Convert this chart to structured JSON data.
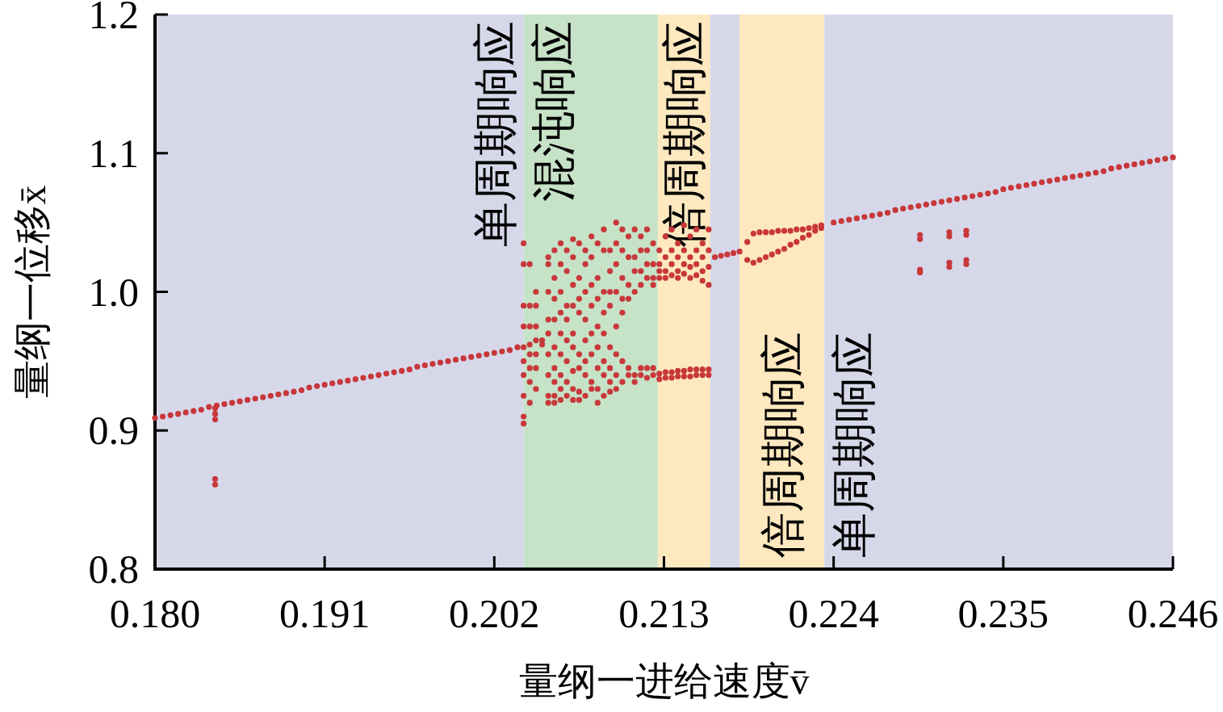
{
  "chart_data": {
    "type": "scatter",
    "xlabel": "量纲一进给速度v̄",
    "ylabel": "量纲一位移x̄",
    "xlim": [
      0.18,
      0.246
    ],
    "ylim": [
      0.8,
      1.2
    ],
    "xticks": [
      {
        "value": 0.18,
        "label": "0.180"
      },
      0.191,
      0.202,
      0.213,
      0.224,
      0.235,
      0.246
    ],
    "yticks": [
      0.8,
      0.9,
      {
        "value": 1.0,
        "label": "1.0"
      },
      1.1,
      1.2
    ],
    "grid": false,
    "marker": "circle",
    "bands": [
      {
        "axis": "x",
        "from": 0.18,
        "to": 0.2039,
        "label": "单周期响应",
        "color": "#d6d8ea"
      },
      {
        "axis": "x",
        "from": 0.2039,
        "to": 0.2126,
        "label": "混沌响应",
        "color": "#c6e2c7"
      },
      {
        "axis": "x",
        "from": 0.2126,
        "to": 0.216,
        "label": "倍周期响应",
        "color": "#fde8bf"
      },
      {
        "axis": "x",
        "from": 0.216,
        "to": 0.2179,
        "color": "#d6d8ea"
      },
      {
        "axis": "x",
        "from": 0.2179,
        "to": 0.2234,
        "label": "倍周期响应",
        "color": "#fde8bf"
      },
      {
        "axis": "x",
        "from": 0.2234,
        "to": 0.246,
        "label": "单周期响应",
        "color": "#d6d8ea"
      }
    ],
    "series": [
      {
        "color": "#c8373a",
        "x": [
          0.18,
          0.1805,
          0.181,
          0.1815,
          0.182,
          0.1825,
          0.183,
          0.1835,
          0.184,
          0.1845,
          0.185,
          0.1855,
          0.186,
          0.1865,
          0.187,
          0.1875,
          0.188,
          0.1885,
          0.189,
          0.1895,
          0.19,
          0.1905,
          0.191,
          0.1915,
          0.192,
          0.1925,
          0.193,
          0.1935,
          0.194,
          0.1945,
          0.195,
          0.1955,
          0.196,
          0.1965,
          0.197,
          0.1975,
          0.198,
          0.1985,
          0.199,
          0.1995,
          0.2,
          0.2005,
          0.201,
          0.2015,
          0.202,
          0.2025,
          0.203,
          0.2035
        ],
        "values": [
          0.909,
          0.91,
          0.911,
          0.912,
          0.913,
          0.914,
          0.915,
          0.917,
          0.918,
          0.919,
          0.92,
          0.921,
          0.922,
          0.923,
          0.924,
          0.925,
          0.926,
          0.927,
          0.928,
          0.929,
          0.931,
          0.932,
          0.933,
          0.934,
          0.935,
          0.936,
          0.937,
          0.938,
          0.939,
          0.94,
          0.941,
          0.942,
          0.943,
          0.944,
          0.946,
          0.947,
          0.948,
          0.949,
          0.95,
          0.951,
          0.952,
          0.953,
          0.954,
          0.955,
          0.956,
          0.957,
          0.958,
          0.96
        ]
      },
      {
        "color": "#c8373a",
        "x": [
          0.1839,
          0.1839,
          0.1839,
          0.1839,
          0.1839
        ],
        "values": [
          0.916,
          0.912,
          0.908,
          0.865,
          0.861
        ]
      },
      {
        "color": "#c8373a",
        "x": [
          0.2039,
          0.2039,
          0.2039,
          0.2039,
          0.2039,
          0.2039,
          0.2039,
          0.2039,
          0.2039,
          0.2039,
          0.2043,
          0.2043,
          0.2043,
          0.2043,
          0.2043,
          0.2043,
          0.2043,
          0.2043,
          0.2047,
          0.2047,
          0.2047,
          0.2047,
          0.2047,
          0.2047,
          0.2047,
          0.2051,
          0.2051
        ],
        "values": [
          1.035,
          1.02,
          0.99,
          0.975,
          0.96,
          0.95,
          0.94,
          0.925,
          0.91,
          0.905,
          1.02,
          0.99,
          0.975,
          0.962,
          0.955,
          0.945,
          0.935,
          0.92,
          1.0,
          0.99,
          0.975,
          0.965,
          0.955,
          0.945,
          0.93,
          0.965,
          0.962
        ]
      },
      {
        "color": "#c8373a",
        "x": [
          0.2055,
          0.2055,
          0.2055,
          0.2055,
          0.2055,
          0.2055,
          0.2055,
          0.2055,
          0.2055,
          0.2059,
          0.2059,
          0.2059,
          0.2059,
          0.2059,
          0.2059,
          0.2059,
          0.2059,
          0.2059,
          0.2063,
          0.2063,
          0.2063,
          0.2063,
          0.2063,
          0.2063,
          0.2063,
          0.2063,
          0.2063,
          0.2067,
          0.2067,
          0.2067,
          0.2067,
          0.2067,
          0.2067,
          0.2067,
          0.2067
        ],
        "values": [
          1.025,
          1.02,
          1.0,
          0.98,
          0.97,
          0.955,
          0.94,
          0.925,
          0.92,
          1.03,
          1.01,
          0.995,
          0.98,
          0.96,
          0.945,
          0.935,
          0.925,
          0.92,
          1.035,
          1.02,
          1.0,
          0.985,
          0.97,
          0.955,
          0.94,
          0.93,
          0.922,
          1.03,
          1.015,
          0.99,
          0.98,
          0.965,
          0.95,
          0.935,
          0.925
        ]
      },
      {
        "color": "#c8373a",
        "x": [
          0.2071,
          0.2071,
          0.2071,
          0.2071,
          0.2071,
          0.2071,
          0.2071,
          0.2071,
          0.2071,
          0.2075,
          0.2075,
          0.2075,
          0.2075,
          0.2075,
          0.2075,
          0.2075,
          0.2075,
          0.2079,
          0.2079,
          0.2079,
          0.2079,
          0.2079,
          0.2079,
          0.2079,
          0.2079,
          0.2083,
          0.2083,
          0.2083,
          0.2083,
          0.2083,
          0.2083,
          0.2083,
          0.2083
        ],
        "values": [
          1.038,
          1.025,
          1.005,
          0.99,
          0.97,
          0.96,
          0.943,
          0.93,
          0.922,
          1.035,
          1.01,
          0.995,
          0.985,
          0.955,
          0.945,
          0.928,
          0.922,
          1.03,
          1.02,
          1.0,
          0.98,
          0.965,
          0.95,
          0.94,
          0.925,
          1.04,
          1.025,
          1.005,
          0.99,
          0.97,
          0.955,
          0.935,
          0.93
        ]
      },
      {
        "color": "#c8373a",
        "x": [
          0.2087,
          0.2087,
          0.2087,
          0.2087,
          0.2087,
          0.2087,
          0.2087,
          0.2087,
          0.2091,
          0.2091,
          0.2091,
          0.2091,
          0.2091,
          0.2091,
          0.2091,
          0.2091,
          0.2095,
          0.2095,
          0.2095,
          0.2095,
          0.2095,
          0.2095,
          0.2095,
          0.2095,
          0.2099,
          0.2099,
          0.2099,
          0.2099,
          0.2099,
          0.2099,
          0.2099,
          0.2099
        ],
        "values": [
          1.035,
          1.01,
          0.995,
          0.975,
          0.96,
          0.945,
          0.93,
          0.92,
          1.045,
          1.03,
          1.0,
          0.985,
          0.97,
          0.95,
          0.94,
          0.925,
          1.03,
          1.015,
          1.0,
          0.99,
          0.96,
          0.945,
          0.935,
          0.928,
          1.05,
          1.035,
          1.02,
          1.0,
          0.975,
          0.955,
          0.94,
          0.93
        ]
      },
      {
        "color": "#c8373a",
        "x": [
          0.2103,
          0.2103,
          0.2103,
          0.2103,
          0.2103,
          0.2103,
          0.2103,
          0.2107,
          0.2107,
          0.2107,
          0.2107,
          0.2107,
          0.2107,
          0.2111,
          0.2111,
          0.2111,
          0.2111,
          0.2111,
          0.2111,
          0.2115,
          0.2115,
          0.2115,
          0.2115,
          0.2115,
          0.2115,
          0.2119,
          0.2119,
          0.2119,
          0.2119,
          0.2119,
          0.2119,
          0.2123,
          0.2123,
          0.2123,
          0.2123,
          0.2123,
          0.2123
        ],
        "values": [
          1.045,
          1.03,
          1.01,
          0.995,
          0.985,
          0.95,
          0.935,
          1.04,
          1.025,
          1.005,
          0.995,
          0.945,
          0.94,
          1.045,
          1.025,
          1.015,
          1.0,
          0.94,
          0.935,
          1.04,
          1.03,
          1.015,
          1.005,
          0.945,
          0.94,
          1.045,
          1.03,
          1.02,
          1.01,
          0.945,
          0.938,
          1.035,
          1.02,
          1.01,
          1.005,
          0.945,
          0.94
        ]
      },
      {
        "color": "#c8373a",
        "x": [
          0.2127,
          0.2127,
          0.2127,
          0.2127,
          0.2127,
          0.2127,
          0.2131,
          0.2131,
          0.2131,
          0.2131,
          0.2131,
          0.2131,
          0.2135,
          0.2135,
          0.2135,
          0.2135,
          0.2135,
          0.2135,
          0.2139,
          0.2139,
          0.2139,
          0.2139,
          0.2139,
          0.2139,
          0.2143,
          0.2143,
          0.2143,
          0.2143,
          0.2143,
          0.2143,
          0.2147,
          0.2147,
          0.2147,
          0.2147,
          0.2147,
          0.2147,
          0.2151,
          0.2151,
          0.2151,
          0.2151,
          0.2151,
          0.2151,
          0.2155,
          0.2155,
          0.2155,
          0.2155,
          0.2155,
          0.2155,
          0.2159,
          0.2159,
          0.2159,
          0.2159,
          0.2159,
          0.2159
        ],
        "values": [
          1.03,
          1.02,
          1.015,
          1.01,
          0.941,
          0.937,
          1.04,
          1.025,
          1.015,
          1.01,
          0.942,
          0.938,
          1.045,
          1.03,
          1.02,
          1.012,
          0.942,
          0.938,
          1.035,
          1.025,
          1.015,
          1.01,
          0.943,
          0.939,
          1.048,
          1.03,
          1.02,
          1.013,
          0.943,
          0.939,
          1.04,
          1.025,
          1.018,
          1.01,
          0.944,
          0.939,
          1.045,
          1.03,
          1.02,
          1.012,
          0.944,
          0.94,
          1.035,
          1.025,
          1.015,
          1.008,
          0.944,
          0.94,
          1.045,
          1.03,
          1.018,
          1.005,
          0.944,
          0.94
        ]
      },
      {
        "color": "#c8373a",
        "x": [
          0.2163,
          0.2167,
          0.2171,
          0.2175,
          0.2179,
          0.2184,
          0.2188,
          0.2192,
          0.2196,
          0.22,
          0.2204,
          0.2208,
          0.2212,
          0.2216,
          0.222,
          0.2224,
          0.2228,
          0.2232,
          0.2184,
          0.2188,
          0.2192,
          0.2196,
          0.22,
          0.2204,
          0.2208,
          0.2212,
          0.2216,
          0.222,
          0.2224,
          0.2228,
          0.2232
        ],
        "values": [
          1.025,
          1.026,
          1.027,
          1.028,
          1.029,
          1.036,
          1.042,
          1.043,
          1.043,
          1.043,
          1.044,
          1.044,
          1.044,
          1.045,
          1.045,
          1.046,
          1.047,
          1.048,
          1.023,
          1.021,
          1.023,
          1.025,
          1.027,
          1.029,
          1.031,
          1.034,
          1.036,
          1.039,
          1.041,
          1.044,
          1.046
        ]
      },
      {
        "color": "#c8373a",
        "x": [
          0.224,
          0.2245,
          0.225,
          0.2255,
          0.226,
          0.2265,
          0.227,
          0.2275,
          0.228,
          0.2285,
          0.229,
          0.2295,
          0.23,
          0.2305,
          0.231,
          0.2315,
          0.232,
          0.2325,
          0.233,
          0.2335,
          0.234,
          0.2345,
          0.235,
          0.2355,
          0.236,
          0.2365,
          0.237,
          0.2375,
          0.238,
          0.2385,
          0.239,
          0.2395,
          0.24,
          0.2405,
          0.241,
          0.2415,
          0.242,
          0.2425,
          0.243,
          0.2435,
          0.244,
          0.2445,
          0.245,
          0.2455,
          0.246
        ],
        "values": [
          1.05,
          1.051,
          1.052,
          1.053,
          1.054,
          1.055,
          1.056,
          1.057,
          1.059,
          1.06,
          1.061,
          1.062,
          1.063,
          1.064,
          1.065,
          1.066,
          1.067,
          1.068,
          1.069,
          1.07,
          1.071,
          1.072,
          1.074,
          1.075,
          1.076,
          1.077,
          1.078,
          1.079,
          1.08,
          1.081,
          1.082,
          1.083,
          1.084,
          1.085,
          1.086,
          1.087,
          1.089,
          1.09,
          1.091,
          1.092,
          1.093,
          1.094,
          1.095,
          1.096,
          1.097
        ]
      },
      {
        "color": "#c8373a",
        "x": [
          0.2296,
          0.2296,
          0.2296,
          0.2296,
          0.2315,
          0.2315,
          0.2315,
          0.2315,
          0.2326,
          0.2326,
          0.2326,
          0.2326
        ],
        "values": [
          1.041,
          1.038,
          1.016,
          1.014,
          1.043,
          1.04,
          1.021,
          1.018,
          1.044,
          1.041,
          1.023,
          1.02
        ]
      }
    ]
  }
}
